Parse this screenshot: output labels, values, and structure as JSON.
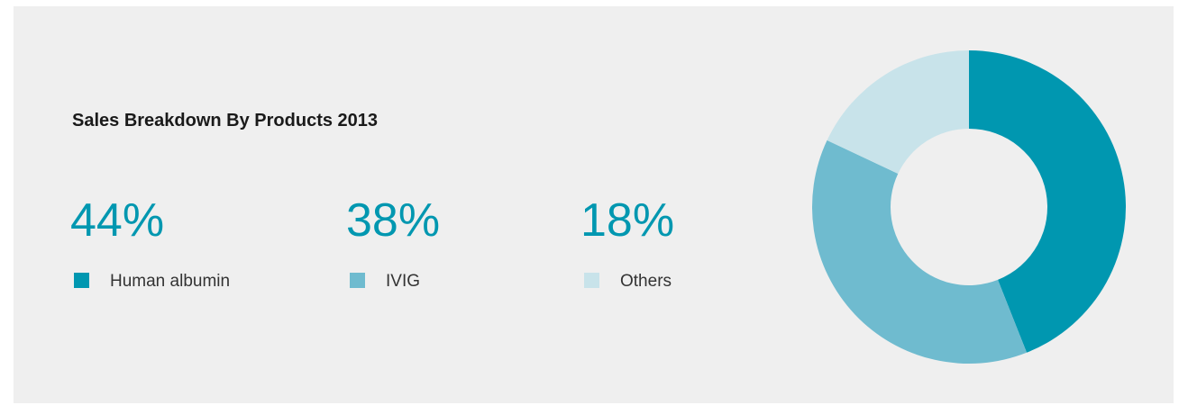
{
  "chart_data": {
    "type": "donut",
    "title": "Sales Breakdown By Products 2013",
    "categories": [
      "Human albumin",
      "IVIG",
      "Others"
    ],
    "values": [
      44,
      38,
      18
    ],
    "value_labels": [
      "44%",
      "38%",
      "18%"
    ],
    "colors": [
      "#0097b0",
      "#6fbbcf",
      "#c8e3ea"
    ]
  }
}
